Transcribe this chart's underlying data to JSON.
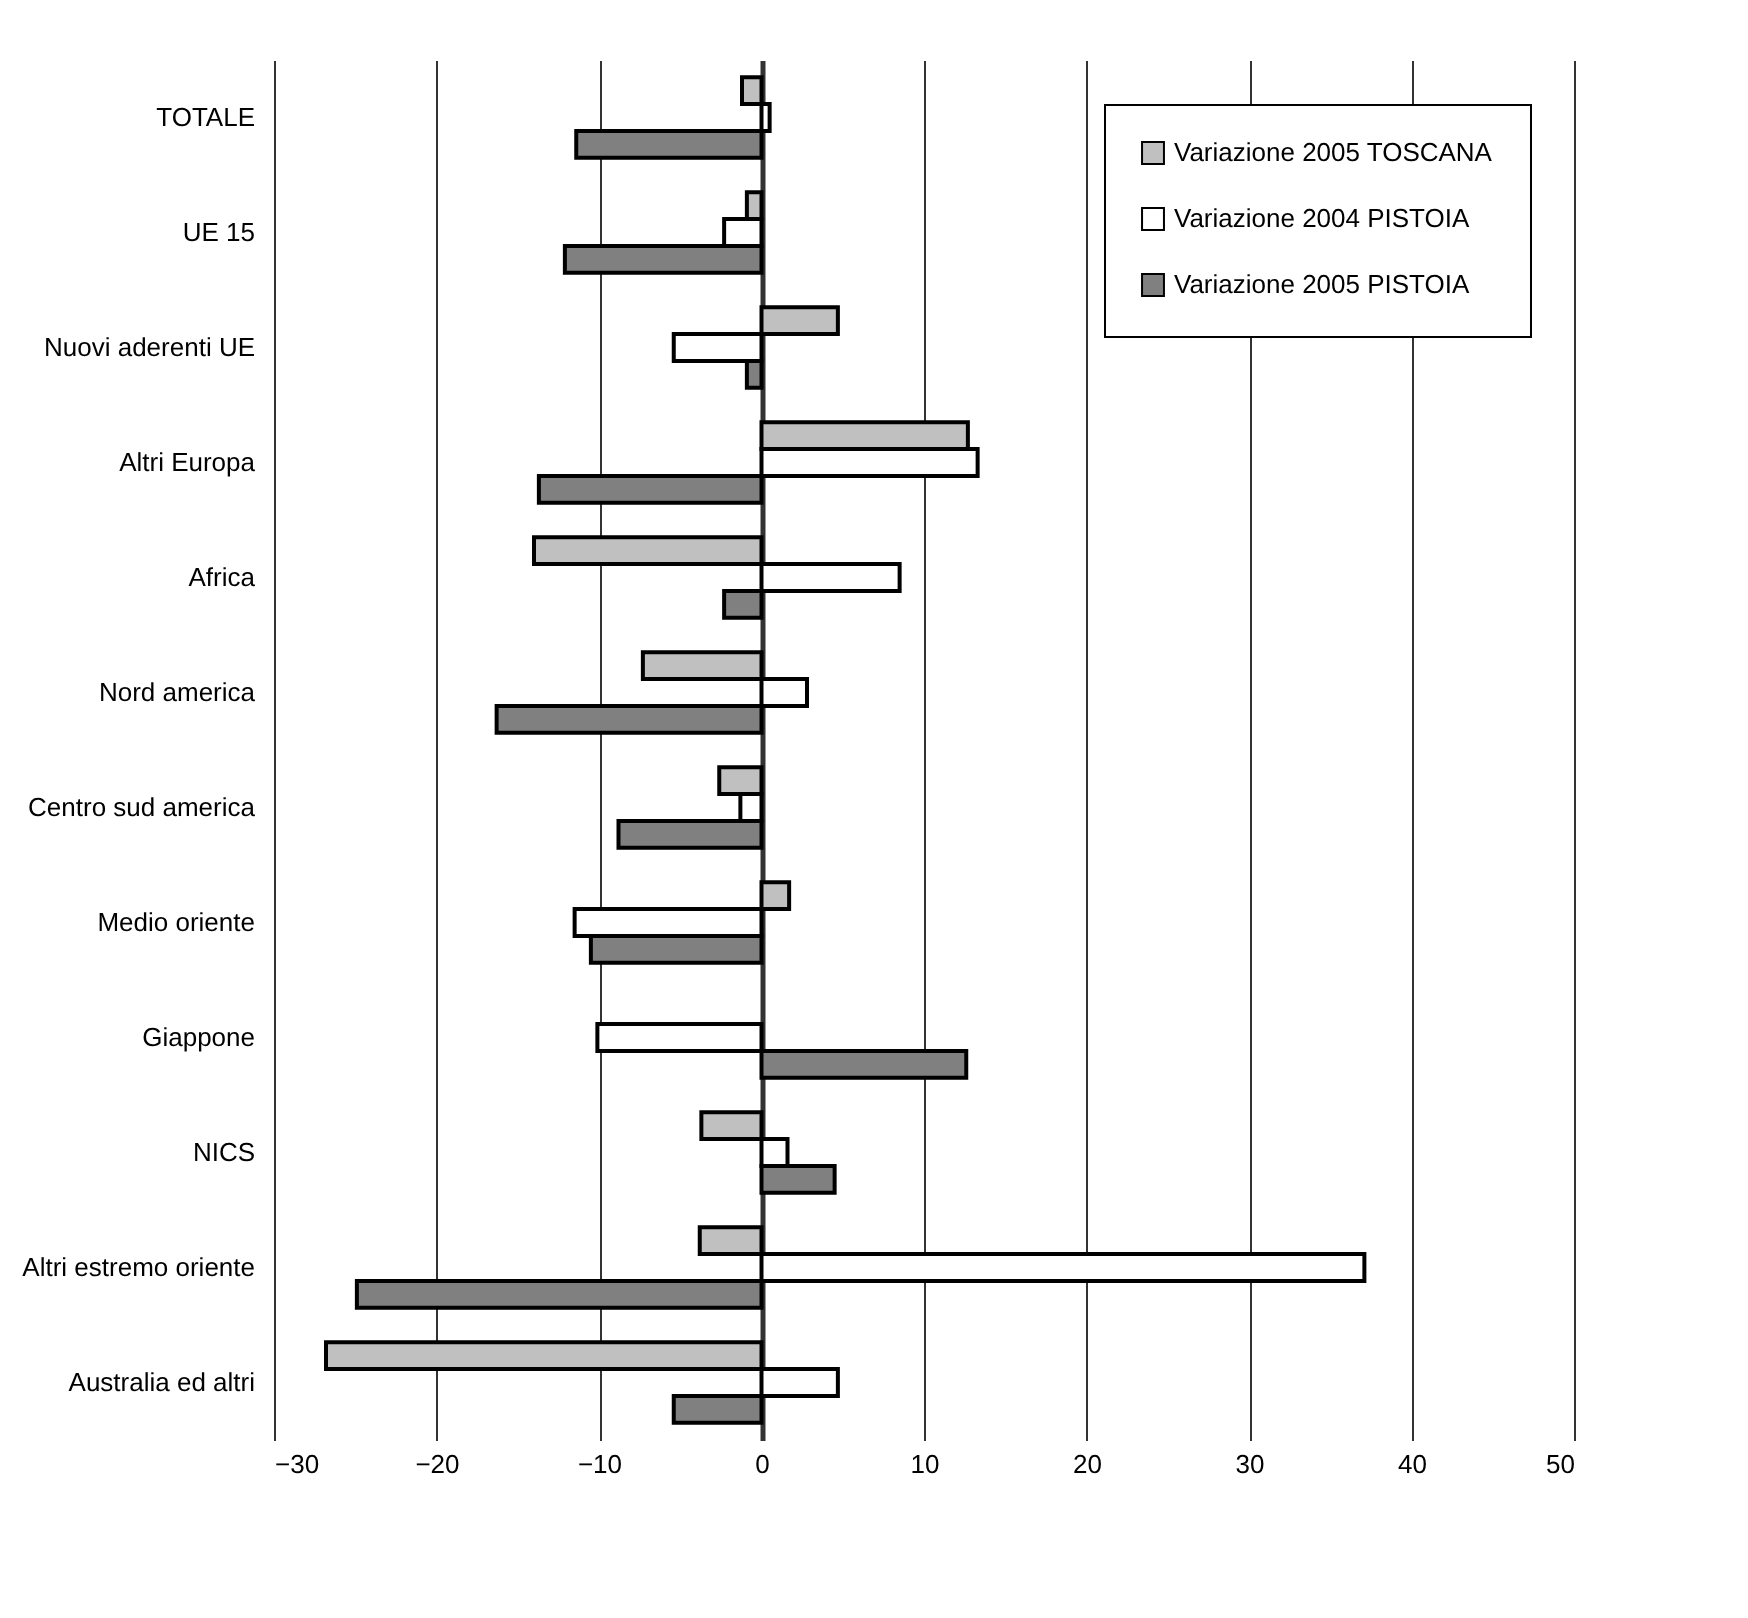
{
  "chart_data": {
    "type": "bar",
    "orientation": "horizontal",
    "categories": [
      "TOTALE",
      "UE 15",
      "Nuovi aderenti UE",
      "Altri Europa",
      "Africa",
      "Nord america",
      "Centro sud america",
      "Medio oriente",
      "Giappone",
      "NICS",
      "Altri estremo oriente",
      "Australia ed altri"
    ],
    "series": [
      {
        "name": "Variazione 2005 TOSCANA",
        "color": "#c0c0c0",
        "values": [
          -1.2,
          -0.9,
          4.7,
          12.7,
          -14.0,
          -7.3,
          -2.6,
          1.7,
          null,
          -3.7,
          -3.8,
          -26.8
        ]
      },
      {
        "name": "Variazione 2004 PISTOIA",
        "color": "#ffffff",
        "values": [
          0.5,
          -2.3,
          -5.4,
          13.3,
          8.5,
          2.8,
          -1.3,
          -11.5,
          -10.1,
          1.6,
          37.1,
          4.7
        ]
      },
      {
        "name": "Variazione 2005 PISTOIA",
        "color": "#808080",
        "values": [
          -11.4,
          -12.1,
          -0.9,
          -13.7,
          -2.3,
          -16.3,
          -8.8,
          -10.5,
          12.6,
          4.5,
          -24.9,
          -5.4
        ]
      }
    ],
    "xlim": [
      -30,
      50
    ],
    "xticks": [
      -30,
      -20,
      -10,
      0,
      10,
      20,
      30,
      40,
      50
    ],
    "grid": "x",
    "legend": "top right"
  }
}
